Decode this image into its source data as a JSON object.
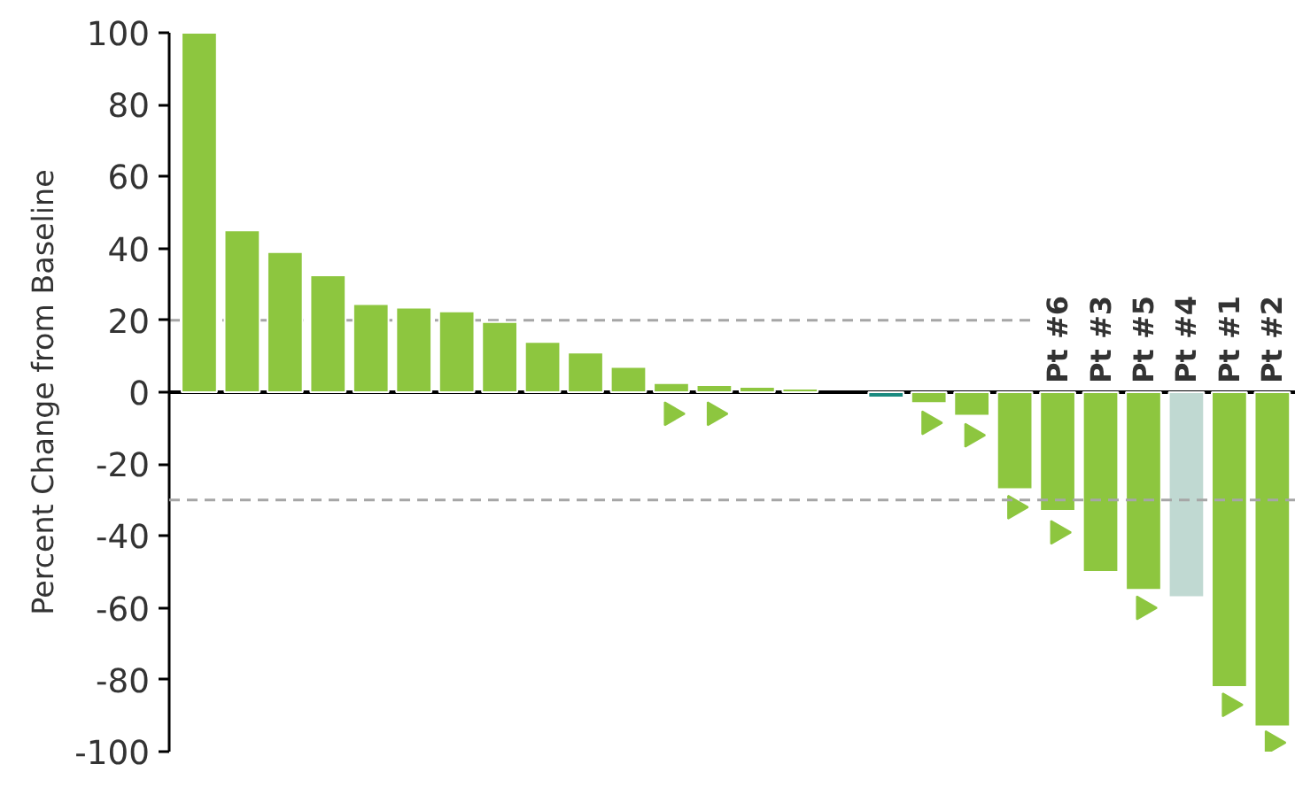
{
  "chart_data": {
    "type": "bar",
    "ylabel": "Percent Change from Baseline",
    "categories": [
      null,
      null,
      null,
      null,
      null,
      null,
      null,
      null,
      null,
      null,
      null,
      null,
      null,
      null,
      null,
      null,
      null,
      null,
      null,
      null,
      "Pt #6",
      "Pt #3",
      "Pt #5",
      "Pt #4",
      "Pt #1",
      "Pt #2"
    ],
    "ylim": [
      -100,
      100
    ],
    "yticks": [
      -100,
      -80,
      -60,
      -40,
      -20,
      0,
      20,
      40,
      60,
      80,
      100
    ],
    "grid": false,
    "series": [
      {
        "colors": [
          "#8dc63f",
          "#8dc63f",
          "#8dc63f",
          "#8dc63f",
          "#8dc63f",
          "#8dc63f",
          "#8dc63f",
          "#8dc63f",
          "#8dc63f",
          "#8dc63f",
          "#8dc63f",
          "#8dc63f",
          "#8dc63f",
          "#8dc63f",
          "#8dc63f",
          "#8dc63f",
          "#1a8a7f",
          "#8dc63f",
          "#8dc63f",
          "#8dc63f",
          "#8dc63f",
          "#8dc63f",
          "#8dc63f",
          "#c0d9d2",
          "#8dc63f",
          "#8dc63f"
        ],
        "values": [
          100,
          45,
          39,
          32.5,
          24.5,
          23.5,
          22.5,
          19.5,
          14,
          11,
          7,
          2.5,
          2,
          1.5,
          1,
          null,
          -1.5,
          -3,
          -6.5,
          -27,
          -33,
          -50,
          -55,
          -57,
          -82,
          -93
        ]
      },
      {
        "type": "scatter",
        "marker": "triangle",
        "color": "#8dc63f",
        "values": [
          null,
          null,
          null,
          null,
          null,
          null,
          null,
          null,
          null,
          null,
          null,
          -6,
          -6,
          null,
          null,
          null,
          null,
          -8.5,
          -12,
          -32,
          -39,
          null,
          -60,
          null,
          -87,
          -97.5
        ]
      }
    ],
    "ref_lines": [
      {
        "axis": "y",
        "value": 20,
        "color": "#a6a6a6",
        "line_style": "dashed"
      },
      {
        "axis": "y",
        "value": -30,
        "color": "#a6a6a6",
        "line_style": "dashed"
      }
    ]
  }
}
